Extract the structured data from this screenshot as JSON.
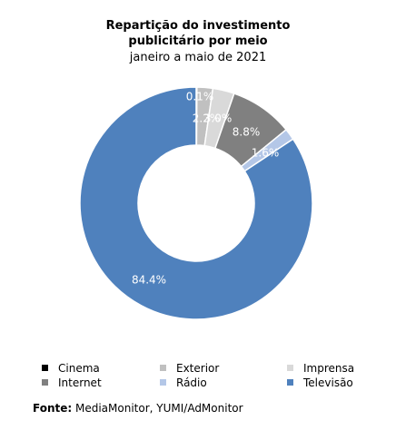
{
  "chart_data": {
    "type": "pie",
    "style": "donut",
    "title": "Repartição do investimento publicitário por meio",
    "subtitle": "janeiro a maio de 2021",
    "legend_placement": "bottom",
    "series": [
      {
        "name": "Cinema",
        "value": 0.1,
        "label": "0.1%",
        "color": "#000000"
      },
      {
        "name": "Exterior",
        "value": 2.2,
        "label": "2.2%",
        "color": "#c0c0c0"
      },
      {
        "name": "Imprensa",
        "value": 3.0,
        "label": "3.0%",
        "color": "#d9d9d9"
      },
      {
        "name": "Internet",
        "value": 8.8,
        "label": "8.8%",
        "color": "#808080"
      },
      {
        "name": "Rádio",
        "value": 1.6,
        "label": "1.6%",
        "color": "#b4c7e7"
      },
      {
        "name": "Televisão",
        "value": 84.4,
        "label": "84.4%",
        "color": "#4f81bd"
      }
    ]
  },
  "source": {
    "label": "Fonte:",
    "text": " MediaMonitor, YUMI/AdMonitor"
  }
}
